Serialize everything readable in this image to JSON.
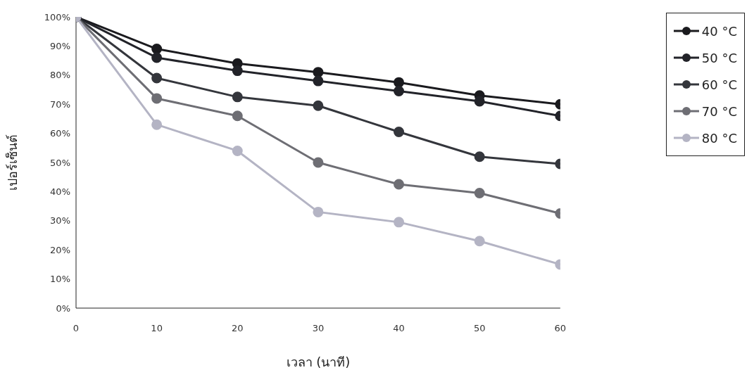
{
  "chart_data": {
    "type": "line",
    "xlabel": "เวลา (นาที)",
    "ylabel": "เปอร์เซ็นต์",
    "x": [
      0,
      10,
      20,
      30,
      40,
      50,
      60
    ],
    "series": [
      {
        "name": "40 °C",
        "color": "#1a1a1e",
        "values": [
          100,
          89,
          84,
          81,
          77.5,
          73,
          70
        ]
      },
      {
        "name": "50 °C",
        "color": "#222329",
        "values": [
          100,
          86,
          81.5,
          78,
          74.5,
          71,
          66
        ]
      },
      {
        "name": "60 °C",
        "color": "#34363c",
        "values": [
          100,
          79,
          72.5,
          69.5,
          60.5,
          52,
          49.5
        ]
      },
      {
        "name": "70 °C",
        "color": "#6e6e74",
        "values": [
          100,
          72,
          66,
          50,
          42.5,
          39.5,
          32.5
        ]
      },
      {
        "name": "80 °C",
        "color": "#b4b4c4",
        "values": [
          100,
          63,
          54,
          33,
          29.5,
          23,
          15
        ]
      }
    ],
    "xlim": [
      0,
      60
    ],
    "xticks": [
      0,
      10,
      20,
      30,
      40,
      50,
      60
    ],
    "ylim": [
      0,
      100
    ],
    "yticks": [
      {
        "value": 0,
        "label": "0%"
      },
      {
        "value": 10,
        "label": "10%"
      },
      {
        "value": 20,
        "label": "20%"
      },
      {
        "value": 30,
        "label": "30%"
      },
      {
        "value": 40,
        "label": "40%"
      },
      {
        "value": 50,
        "label": "50%"
      },
      {
        "value": 60,
        "label": "60%"
      },
      {
        "value": 70,
        "label": "70%"
      },
      {
        "value": 80,
        "label": "80%"
      },
      {
        "value": 90,
        "label": "90%"
      },
      {
        "value": 100,
        "label": "100%"
      }
    ],
    "grid": false,
    "legend": "right",
    "marker": "circle",
    "line_style": "solid"
  }
}
